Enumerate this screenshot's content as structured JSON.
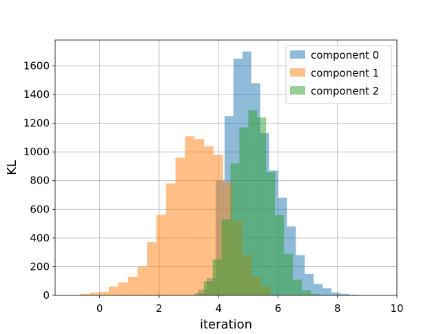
{
  "chart_data": {
    "type": "histogram",
    "xlabel": "iteration",
    "ylabel": "KL",
    "xlim": [
      -1.5,
      10
    ],
    "ylim": [
      0,
      1780
    ],
    "xticks": [
      0,
      2,
      4,
      6,
      8,
      10
    ],
    "yticks": [
      0,
      200,
      400,
      600,
      800,
      1000,
      1200,
      1400,
      1600
    ],
    "grid": true,
    "legend_position": "top-right",
    "series": [
      {
        "name": "component 0",
        "color": "#1f77b4",
        "alpha": 0.5,
        "bin_edges": [
          3.3,
          3.6,
          3.9,
          4.2,
          4.5,
          4.8,
          5.1,
          5.4,
          5.7,
          6.0,
          6.3,
          6.6,
          6.9,
          7.2,
          7.5,
          7.8,
          8.1,
          8.4,
          8.7
        ],
        "counts": [
          40,
          120,
          800,
          1250,
          1650,
          1700,
          1480,
          1130,
          870,
          680,
          480,
          280,
          150,
          80,
          50,
          20,
          10,
          5
        ]
      },
      {
        "name": "component 1",
        "color": "#ff7f0e",
        "alpha": 0.5,
        "bin_edges": [
          -0.65,
          -0.33,
          -0.01,
          0.31,
          0.63,
          0.95,
          1.27,
          1.59,
          1.91,
          2.23,
          2.55,
          2.87,
          3.19,
          3.51,
          3.83,
          4.15,
          4.47,
          4.79,
          5.11,
          5.43,
          5.75
        ],
        "counts": [
          10,
          20,
          25,
          60,
          90,
          130,
          200,
          370,
          560,
          780,
          960,
          1110,
          1090,
          1040,
          980,
          790,
          520,
          280,
          130,
          60
        ]
      },
      {
        "name": "component 2",
        "color": "#2ca02c",
        "alpha": 0.5,
        "bin_edges": [
          3.2,
          3.5,
          3.8,
          4.1,
          4.4,
          4.7,
          5.0,
          5.3,
          5.6,
          5.9,
          6.2,
          6.5,
          6.8,
          7.1,
          7.4
        ],
        "counts": [
          15,
          100,
          250,
          530,
          920,
          1170,
          1290,
          1240,
          860,
          560,
          290,
          110,
          35,
          10
        ]
      }
    ]
  }
}
